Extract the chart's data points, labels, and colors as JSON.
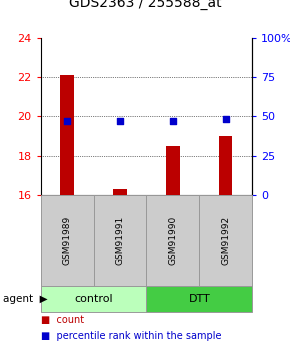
{
  "title": "GDS2363 / 255588_at",
  "samples": [
    "GSM91989",
    "GSM91991",
    "GSM91990",
    "GSM91992"
  ],
  "count_values": [
    22.1,
    16.3,
    18.5,
    19.0
  ],
  "percentile_values": [
    47.0,
    47.0,
    47.0,
    48.5
  ],
  "ylim_left": [
    16,
    24
  ],
  "ylim_right": [
    0,
    100
  ],
  "yticks_left": [
    16,
    18,
    20,
    22,
    24
  ],
  "yticks_right": [
    0,
    25,
    50,
    75,
    100
  ],
  "ytick_labels_right": [
    "0",
    "25",
    "50",
    "75",
    "100%"
  ],
  "bar_color": "#bb0000",
  "dot_color": "#0000cc",
  "bar_width": 0.25,
  "groups": [
    {
      "label": "control",
      "samples": [
        0,
        1
      ],
      "color": "#bbffbb"
    },
    {
      "label": "DTT",
      "samples": [
        2,
        3
      ],
      "color": "#44cc44"
    }
  ],
  "agent_label": "agent",
  "legend_count_label": "count",
  "legend_pct_label": "percentile rank within the sample",
  "title_fontsize": 10,
  "tick_fontsize": 8,
  "sample_box_color": "#cccccc",
  "sample_box_edge": "#999999"
}
